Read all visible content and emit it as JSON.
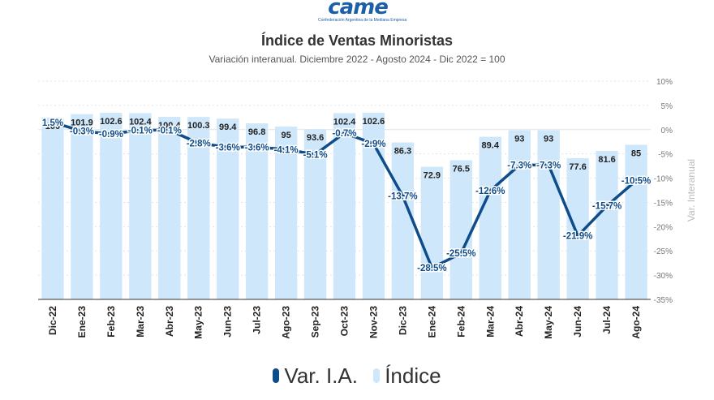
{
  "logo": {
    "wordmark": "came",
    "tagline": "Confederación Argentina de la Mediana Empresa"
  },
  "header": {
    "title": "Índice de Ventas Minoristas",
    "subtitle": "Variación interanual. Diciembre 2022 - Agosto 2024 - Dic 2022 = 100"
  },
  "legend": {
    "line_label": "Var. I.A.",
    "bar_label": "Índice"
  },
  "colors": {
    "line": "#0e4c8a",
    "bar": "#cfe7fa",
    "grid": "#e3e3e3"
  },
  "chart_data": {
    "type": "bar",
    "categories": [
      "Dic-22",
      "Ene-23",
      "Feb-23",
      "Mar-23",
      "Abr-23",
      "May-23",
      "Jun-23",
      "Jul-23",
      "Ago-23",
      "Sep-23",
      "Oct-23",
      "Nov-23",
      "Dic-23",
      "Ene-24",
      "Feb-24",
      "Mar-24",
      "Abr-24",
      "May-24",
      "Jun-24",
      "Jul-24",
      "Ago-24"
    ],
    "series": [
      {
        "name": "Índice",
        "kind": "bar",
        "values": [
          100,
          101.9,
          102.6,
          102.4,
          100.4,
          100.3,
          99.4,
          96.8,
          95,
          93.6,
          102.4,
          102.6,
          86.3,
          72.9,
          76.5,
          89.4,
          93,
          93,
          77.6,
          81.6,
          85
        ],
        "labels": [
          "100",
          "101.9",
          "102.6",
          "102.4",
          "100.4",
          "100.3",
          "99.4",
          "96.8",
          "95",
          "93.6",
          "102.4",
          "102.6",
          "86.3",
          "72.9",
          "76.5",
          "89.4",
          "93",
          "93",
          "77.6",
          "81.6",
          "85"
        ]
      },
      {
        "name": "Var. I.A.",
        "kind": "line",
        "values": [
          1.5,
          -0.3,
          -0.9,
          -0.1,
          -0.1,
          -2.8,
          -3.6,
          -3.6,
          -4.1,
          -5.1,
          -0.7,
          -2.9,
          -13.7,
          -28.5,
          -25.5,
          -12.6,
          -7.3,
          -7.3,
          -21.9,
          -15.7,
          -10.5
        ],
        "labels": [
          "1.5%",
          "-0.3%",
          "-0.9%",
          "-0.1%",
          "-0.1%",
          "-2.8%",
          "-3.6%",
          "-3.6%",
          "-4.1%",
          "-5.1%",
          "-0.7%",
          "-2.9%",
          "-13.7%",
          "-28.5%",
          "-25.5%",
          "-12.6%",
          "-7.3%",
          "-7.3%",
          "-21.9%",
          "-15.7%",
          "-10.5%"
        ]
      }
    ],
    "right_axis": {
      "label": "Var. Interanual",
      "range": [
        -35,
        10
      ],
      "ticks": [
        10,
        5,
        0,
        -5,
        -10,
        -15,
        -20,
        -25,
        -30,
        -35
      ],
      "tick_labels": [
        "10%",
        "5%",
        "0%",
        "-5%",
        "-10%",
        "-15%",
        "-20%",
        "-25%",
        "-30%",
        "-35%"
      ]
    },
    "bar_axis_range": [
      0,
      120
    ],
    "grid": true,
    "legend_position": "bottom-center"
  }
}
